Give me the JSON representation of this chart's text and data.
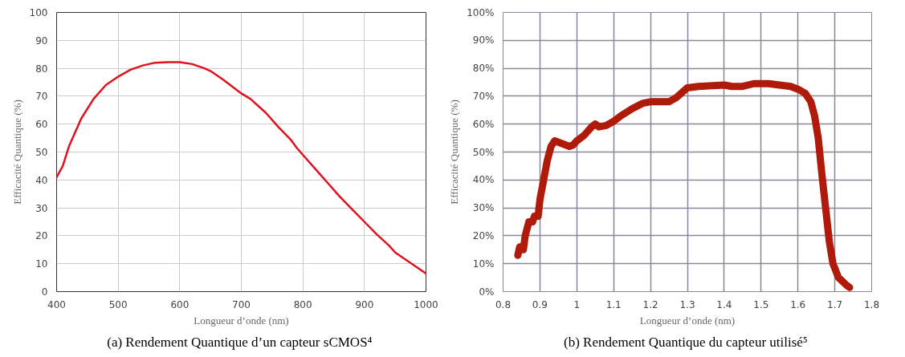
{
  "chart_data": [
    {
      "type": "line",
      "xlabel": "Longueur d’onde (nm)",
      "ylabel": "Efficacité Quantique (%)",
      "annotations": [
        "(a)  Rendement Quantique d’un capteur sCMOS⁴"
      ],
      "x": [
        400,
        410,
        420,
        440,
        460,
        480,
        500,
        520,
        540,
        560,
        580,
        600,
        620,
        640,
        650,
        670,
        700,
        715,
        740,
        760,
        780,
        790,
        800,
        820,
        840,
        860,
        880,
        900,
        920,
        940,
        950,
        970,
        1000
      ],
      "series": [
        {
          "color": "#e0101e",
          "values": [
            41,
            45,
            52,
            62,
            69,
            74,
            77,
            79.5,
            81,
            82,
            82.2,
            82.2,
            81.5,
            80,
            79,
            76,
            71,
            69,
            64,
            59,
            54.5,
            51.5,
            49,
            44,
            39,
            34,
            29.5,
            25,
            20.5,
            16.5,
            14,
            11,
            6.5
          ]
        }
      ],
      "xlim": [
        400,
        1000
      ],
      "xticks": [
        400,
        500,
        600,
        700,
        800,
        900,
        1000
      ],
      "ylim": [
        0,
        100
      ],
      "yticks": [
        0,
        10,
        20,
        30,
        40,
        50,
        60,
        70,
        80,
        90,
        100
      ],
      "grid": true
    },
    {
      "type": "line",
      "xlabel": "Longueur d’onde (nm)",
      "ylabel": "Efficacité Quantique (%)",
      "annotations": [
        "(b)  Rendement Quantique du capteur utilisé⁵"
      ],
      "x": [
        0.84,
        0.845,
        0.855,
        0.86,
        0.87,
        0.88,
        0.885,
        0.895,
        0.9,
        0.91,
        0.92,
        0.93,
        0.94,
        0.96,
        0.98,
        0.99,
        1.0,
        1.02,
        1.04,
        1.05,
        1.06,
        1.08,
        1.1,
        1.12,
        1.15,
        1.18,
        1.2,
        1.25,
        1.27,
        1.3,
        1.33,
        1.4,
        1.42,
        1.45,
        1.48,
        1.52,
        1.55,
        1.58,
        1.6,
        1.62,
        1.635,
        1.645,
        1.655,
        1.665,
        1.675,
        1.685,
        1.695,
        1.71,
        1.73,
        1.74
      ],
      "series": [
        {
          "color": "#b01a0a",
          "values": [
            13,
            16,
            15,
            20,
            25,
            25,
            27,
            27,
            33,
            40,
            47,
            52,
            54,
            53,
            52,
            52.5,
            54,
            56,
            59,
            60,
            59,
            59.5,
            61,
            63,
            65.5,
            67.5,
            68,
            68,
            69.5,
            73,
            73.5,
            74,
            73.5,
            73.5,
            74.5,
            74.5,
            74,
            73.5,
            72.5,
            71,
            68,
            63,
            55,
            42,
            30,
            18,
            10,
            5,
            2.5,
            1.5
          ]
        }
      ],
      "xlim": [
        0.8,
        1.8
      ],
      "xticks": [
        0.8,
        0.9,
        {
          "value": 1,
          "label": "1"
        },
        1.1,
        1.2,
        1.3,
        1.4,
        1.5,
        1.6,
        1.7,
        1.8
      ],
      "ylim": [
        0,
        100
      ],
      "yticks": [
        {
          "value": 0,
          "label": "0%"
        },
        {
          "value": 10,
          "label": "10%"
        },
        {
          "value": 20,
          "label": "20%"
        },
        {
          "value": 30,
          "label": "30%"
        },
        {
          "value": 40,
          "label": "40%"
        },
        {
          "value": 50,
          "label": "50%"
        },
        {
          "value": 60,
          "label": "60%"
        },
        {
          "value": 70,
          "label": "70%"
        },
        {
          "value": 80,
          "label": "80%"
        },
        {
          "value": 90,
          "label": "90%"
        },
        {
          "value": 100,
          "label": "100%"
        }
      ],
      "grid": true
    }
  ]
}
